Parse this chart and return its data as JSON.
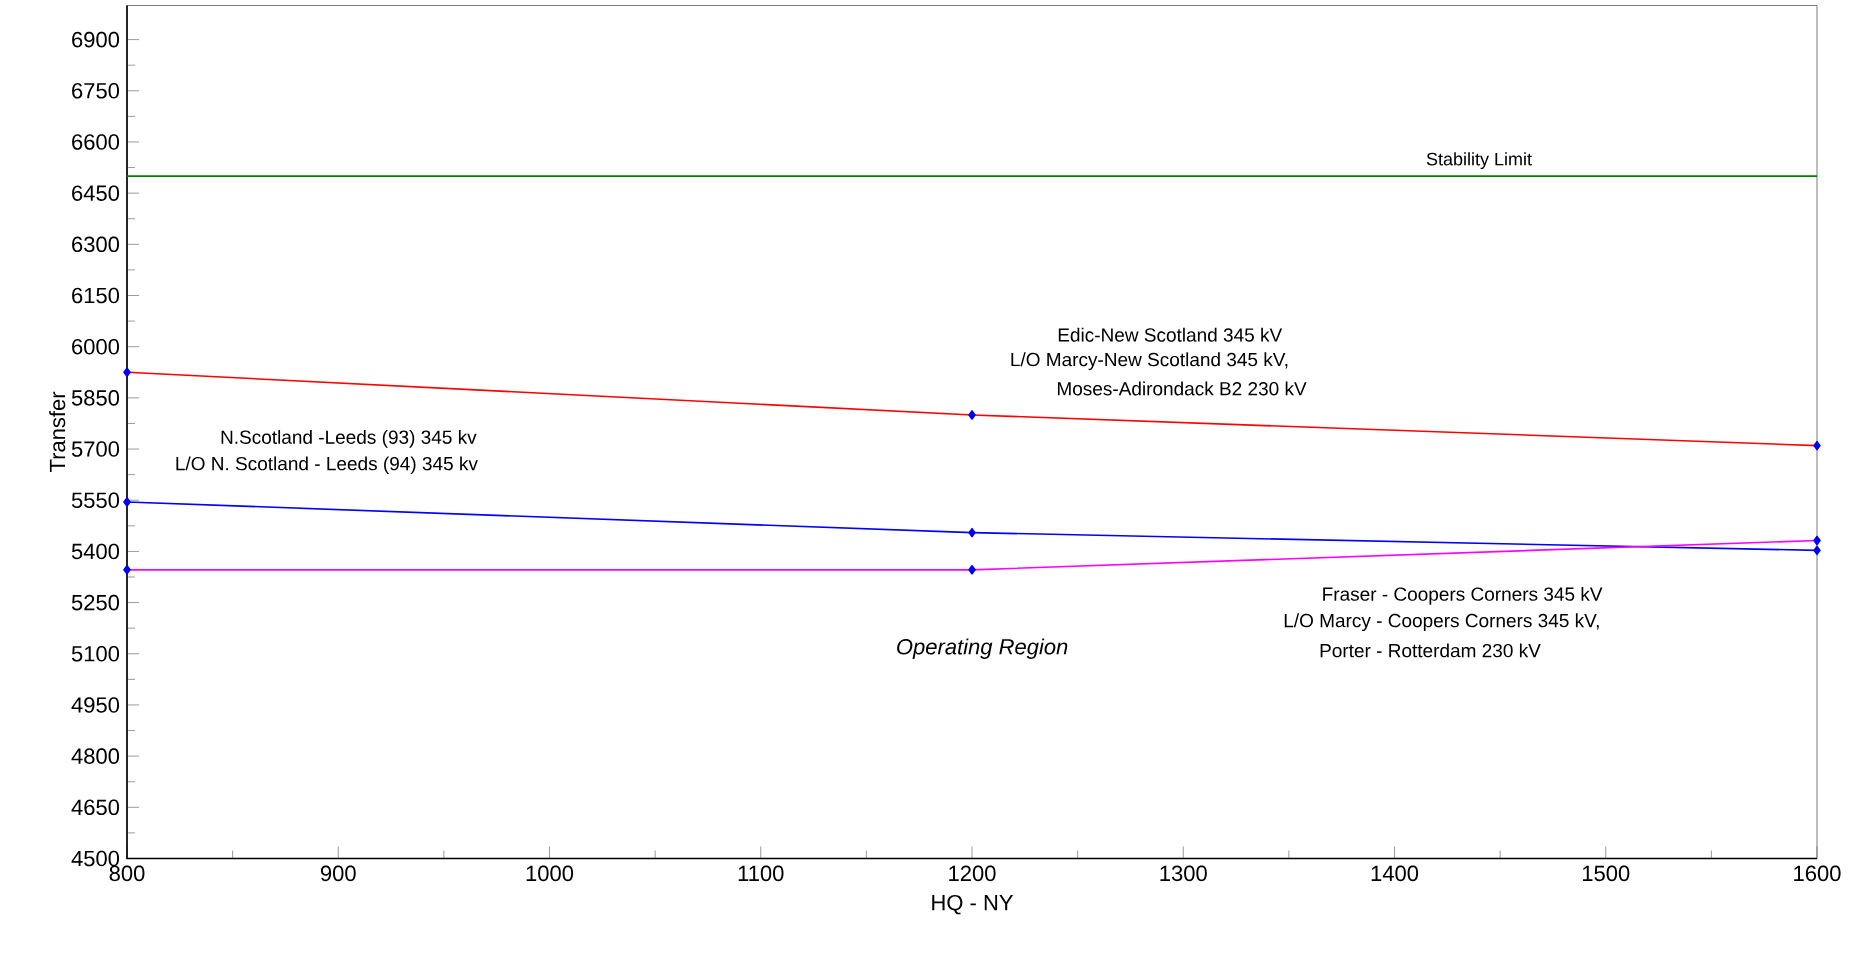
{
  "chart_data": {
    "type": "line",
    "xlabel": "HQ - NY",
    "ylabel": "Transfer",
    "x": [
      800,
      1200,
      1600
    ],
    "series": [
      {
        "color": "#ff0000",
        "values": [
          5925,
          5800,
          5710
        ]
      },
      {
        "color": "#0000ff",
        "values": [
          5545,
          5455,
          5403
        ]
      },
      {
        "color": "#ff00ff",
        "values": [
          5346,
          5346,
          5432
        ]
      }
    ],
    "xlim": [
      800,
      1600
    ],
    "xticks": [
      800,
      900,
      1000,
      1100,
      1200,
      1300,
      1400,
      1500,
      1600
    ],
    "ylim": [
      4500,
      7000
    ],
    "yticks": [
      4500,
      4650,
      4800,
      4950,
      5100,
      5250,
      5400,
      5550,
      5700,
      5850,
      6000,
      6150,
      6300,
      6450,
      6600,
      6750,
      6900
    ],
    "ref_lines": [
      {
        "axis": "y",
        "value": 6500,
        "label": "Stability Limit",
        "color": "#008000"
      }
    ],
    "marker": "diamond",
    "grid": false,
    "annotations": [
      "Edic-New Scotland 345 kV",
      "L/O Marcy-New Scotland 345 kV,",
      "Moses-Adirondack B2 230 kV",
      "N.Scotland -Leeds (93) 345 kv",
      "L/O N. Scotland - Leeds (94) 345 kv",
      "Fraser - Coopers Corners 345 kV",
      "L/O Marcy - Coopers Corners 345 kV,",
      "Porter - Rotterdam 230 kV",
      "*Operating Region*"
    ]
  }
}
